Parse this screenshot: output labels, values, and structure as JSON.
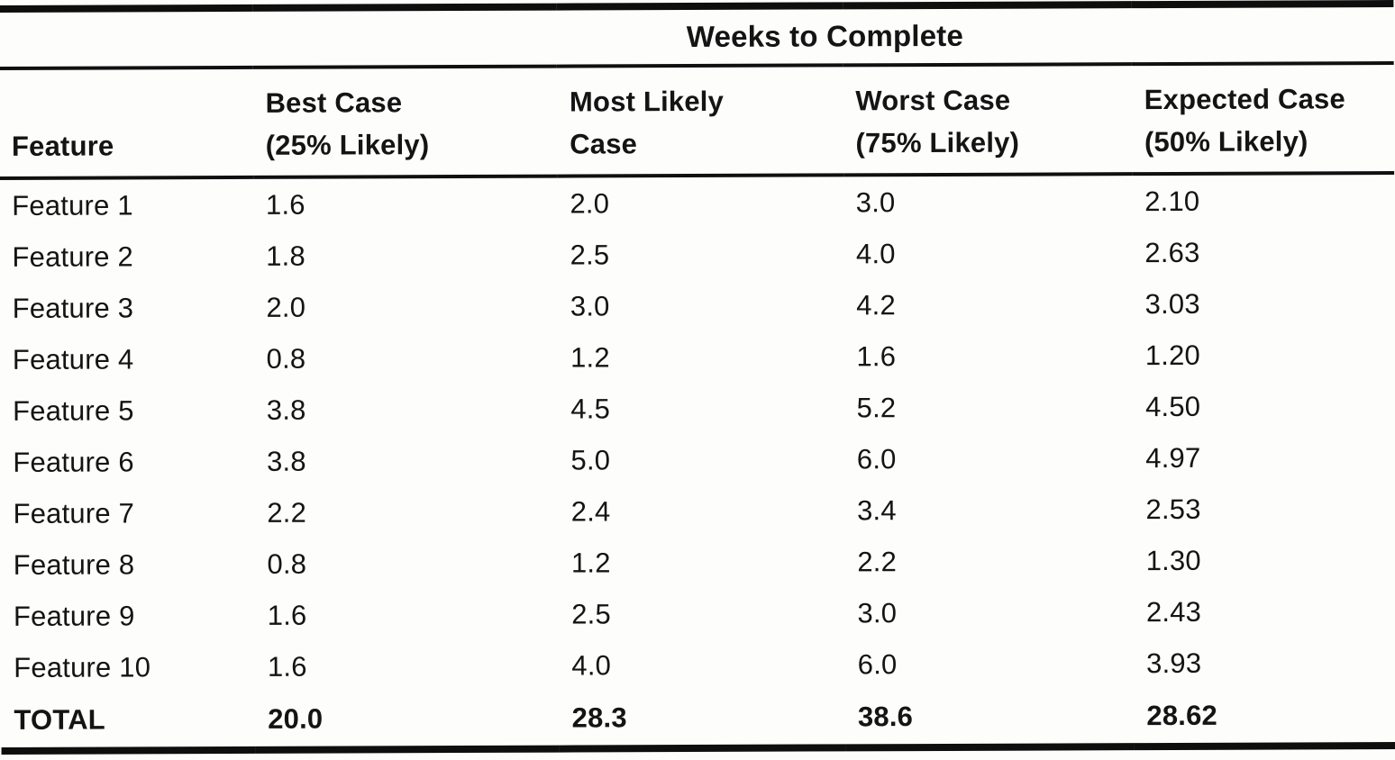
{
  "page": {
    "background": "#fdfdfc",
    "ink": "#141414",
    "rule_color": "#0e0e0e"
  },
  "table": {
    "spanning_header": "Weeks to Complete",
    "columns": [
      "Feature",
      "Best Case\n(25% Likely)",
      "Most Likely\nCase",
      "Worst Case\n(75% Likely)",
      "Expected Case\n(50% Likely)"
    ],
    "rows": [
      {
        "feature": "Feature 1",
        "best_case": "1.6",
        "most_likely": "2.0",
        "worst_case": "3.0",
        "expected": "2.10"
      },
      {
        "feature": "Feature 2",
        "best_case": "1.8",
        "most_likely": "2.5",
        "worst_case": "4.0",
        "expected": "2.63"
      },
      {
        "feature": "Feature 3",
        "best_case": "2.0",
        "most_likely": "3.0",
        "worst_case": "4.2",
        "expected": "3.03"
      },
      {
        "feature": "Feature 4",
        "best_case": "0.8",
        "most_likely": "1.2",
        "worst_case": "1.6",
        "expected": "1.20"
      },
      {
        "feature": "Feature 5",
        "best_case": "3.8",
        "most_likely": "4.5",
        "worst_case": "5.2",
        "expected": "4.50"
      },
      {
        "feature": "Feature 6",
        "best_case": "3.8",
        "most_likely": "5.0",
        "worst_case": "6.0",
        "expected": "4.97"
      },
      {
        "feature": "Feature 7",
        "best_case": "2.2",
        "most_likely": "2.4",
        "worst_case": "3.4",
        "expected": "2.53"
      },
      {
        "feature": "Feature 8",
        "best_case": "0.8",
        "most_likely": "1.2",
        "worst_case": "2.2",
        "expected": "1.30"
      },
      {
        "feature": "Feature 9",
        "best_case": "1.6",
        "most_likely": "2.5",
        "worst_case": "3.0",
        "expected": "2.43"
      },
      {
        "feature": "Feature 10",
        "best_case": "1.6",
        "most_likely": "4.0",
        "worst_case": "6.0",
        "expected": "3.93"
      }
    ],
    "total_row": {
      "feature": "TOTAL",
      "best_case": "20.0",
      "most_likely": "28.3",
      "worst_case": "38.6",
      "expected": "28.62"
    }
  }
}
